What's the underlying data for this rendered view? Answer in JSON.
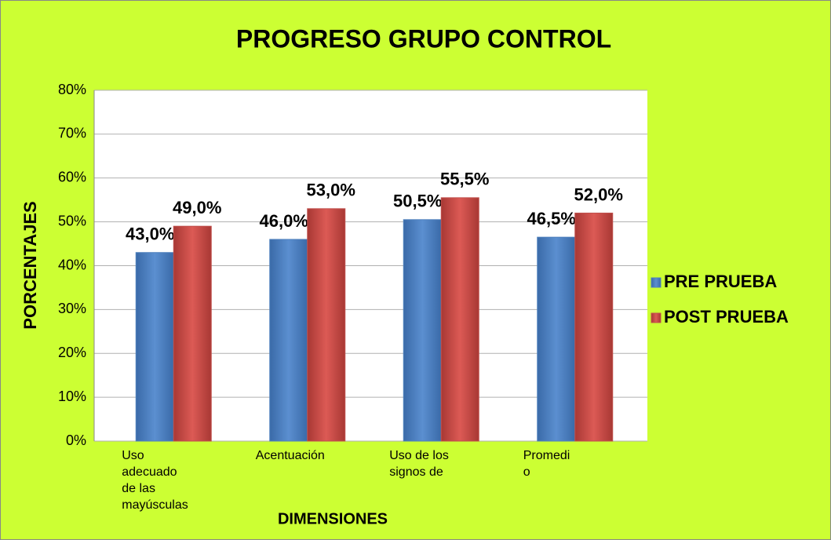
{
  "chart_data": {
    "type": "bar",
    "title": "PROGRESO  GRUPO CONTROL",
    "x_label": "DIMENSIONES",
    "y_label": "PORCENTAJES",
    "categories": [
      "Uso\nadecuado\nde las\nmayúsculas",
      "Acentuación",
      "Uso de los\nsignos de",
      "Promedi\no"
    ],
    "series": [
      {
        "name": "PRE PRUEBA",
        "color": "#4f81bd",
        "values": [
          43.0,
          46.0,
          50.5,
          46.5
        ],
        "value_labels": [
          "43,0%",
          "46,0%",
          "50,5%",
          "46,5%"
        ]
      },
      {
        "name": "POST PRUEBA",
        "color": "#c0504d",
        "values": [
          49.0,
          53.0,
          55.5,
          52.0
        ],
        "value_labels": [
          "49,0%",
          "53,0%",
          "55,5%",
          "52,0%"
        ]
      }
    ],
    "ylim": [
      0,
      80
    ],
    "yticks": [
      {
        "value": 0,
        "label": "0%"
      },
      {
        "value": 10,
        "label": "10%"
      },
      {
        "value": 20,
        "label": "20%"
      },
      {
        "value": 30,
        "label": "30%"
      },
      {
        "value": 40,
        "label": "40%"
      },
      {
        "value": 50,
        "label": "50%"
      },
      {
        "value": 60,
        "label": "60%"
      },
      {
        "value": 70,
        "label": "70%"
      },
      {
        "value": 80,
        "label": "80%"
      }
    ],
    "grid": true,
    "legend": "right"
  }
}
